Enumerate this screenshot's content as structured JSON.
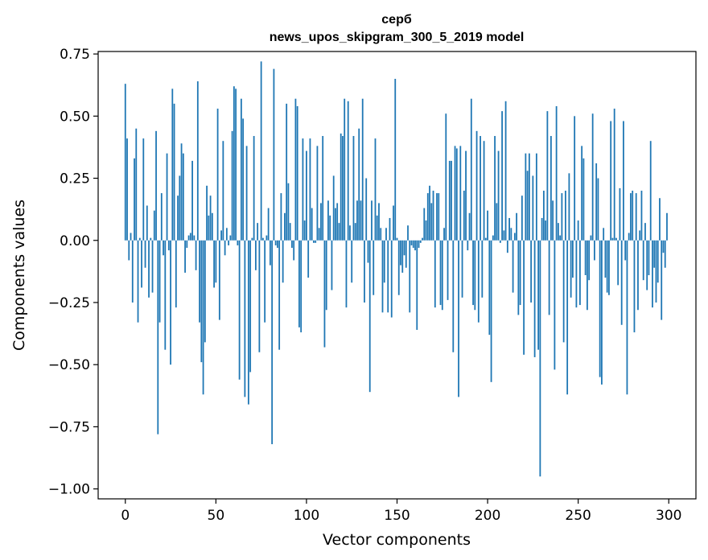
{
  "chart_data": {
    "type": "bar",
    "title_line1": "серб",
    "title_line2": "news_upos_skipgram_300_5_2019 model",
    "xlabel": "Vector components",
    "ylabel": "Components values",
    "xlim": [
      -15,
      315
    ],
    "ylim": [
      -1.04,
      0.76
    ],
    "xticks": [
      0,
      50,
      100,
      150,
      200,
      250,
      300
    ],
    "xtick_labels": [
      "0",
      "50",
      "100",
      "150",
      "200",
      "250",
      "300"
    ],
    "yticks": [
      0.75,
      0.5,
      0.25,
      0.0,
      -0.25,
      -0.5,
      -0.75,
      -1.0
    ],
    "ytick_labels": [
      "0.75",
      "0.50",
      "0.25",
      "0.00",
      "−0.25",
      "−0.50",
      "−0.75",
      "−1.00"
    ],
    "bar_color": "#1f77b4",
    "x_start": 0,
    "values": [
      0.63,
      0.41,
      -0.08,
      0.03,
      -0.25,
      0.33,
      0.45,
      -0.33,
      0.01,
      -0.19,
      0.41,
      -0.11,
      0.14,
      -0.23,
      0.01,
      -0.21,
      0.12,
      0.44,
      -0.78,
      -0.33,
      0.19,
      -0.06,
      -0.44,
      0.35,
      -0.04,
      -0.5,
      0.61,
      0.55,
      -0.27,
      0.18,
      0.26,
      0.39,
      0.35,
      -0.13,
      -0.03,
      0.02,
      0.03,
      0.32,
      0.02,
      -0.12,
      0.64,
      -0.33,
      -0.49,
      -0.62,
      -0.41,
      0.22,
      0.1,
      0.18,
      0.11,
      -0.19,
      -0.17,
      0.53,
      -0.32,
      0.04,
      0.4,
      -0.06,
      0.05,
      -0.02,
      0.02,
      0.44,
      0.62,
      0.61,
      -0.02,
      -0.56,
      0.57,
      0.49,
      -0.63,
      0.38,
      -0.66,
      -0.53,
      0.01,
      0.42,
      -0.12,
      0.07,
      -0.45,
      0.72,
      0.01,
      -0.33,
      0.02,
      0.13,
      -0.1,
      -0.82,
      0.69,
      -0.02,
      -0.03,
      -0.44,
      0.19,
      -0.17,
      0.11,
      0.55,
      0.23,
      0.07,
      -0.03,
      -0.08,
      0.57,
      0.54,
      -0.35,
      -0.37,
      0.41,
      0.08,
      0.36,
      -0.15,
      0.41,
      0.13,
      -0.01,
      -0.01,
      0.38,
      0.05,
      0.15,
      0.42,
      -0.43,
      -0.28,
      0.16,
      0.1,
      -0.2,
      0.26,
      0.13,
      0.15,
      0.07,
      0.43,
      0.42,
      0.57,
      -0.27,
      0.56,
      0.06,
      -0.17,
      0.42,
      0.07,
      0.16,
      0.45,
      0.16,
      0.57,
      -0.25,
      0.25,
      -0.09,
      -0.61,
      0.16,
      -0.22,
      0.41,
      0.1,
      0.15,
      0.05,
      -0.29,
      -0.17,
      0.05,
      -0.29,
      0.09,
      -0.31,
      0.14,
      0.65,
      0.01,
      -0.22,
      -0.1,
      -0.13,
      -0.06,
      -0.11,
      0.06,
      -0.29,
      -0.02,
      -0.03,
      -0.04,
      -0.36,
      -0.03,
      -0.01,
      0.01,
      0.13,
      0.08,
      0.19,
      0.22,
      0.15,
      0.2,
      -0.27,
      0.19,
      0.19,
      -0.26,
      -0.28,
      0.05,
      0.51,
      -0.24,
      0.32,
      0.32,
      -0.45,
      0.38,
      0.37,
      -0.63,
      0.38,
      -0.23,
      0.2,
      0.36,
      -0.04,
      0.11,
      0.57,
      -0.26,
      -0.28,
      0.44,
      -0.33,
      0.42,
      -0.23,
      0.4,
      0.01,
      0.12,
      -0.38,
      -0.57,
      0.02,
      0.42,
      0.15,
      0.36,
      -0.01,
      0.52,
      0.04,
      0.56,
      -0.05,
      0.09,
      0.05,
      -0.21,
      0.03,
      0.11,
      -0.3,
      -0.26,
      0.18,
      -0.46,
      0.35,
      0.28,
      0.35,
      -0.25,
      0.26,
      -0.47,
      0.35,
      -0.44,
      -0.95,
      0.09,
      0.2,
      0.08,
      0.52,
      -0.3,
      0.42,
      0.16,
      -0.52,
      0.54,
      0.07,
      0.02,
      0.19,
      -0.41,
      0.2,
      -0.62,
      0.27,
      -0.23,
      -0.15,
      0.5,
      -0.27,
      0.08,
      -0.26,
      0.38,
      0.33,
      -0.14,
      -0.28,
      -0.16,
      0.02,
      0.51,
      -0.08,
      0.31,
      0.25,
      -0.55,
      -0.58,
      0.05,
      -0.15,
      -0.21,
      -0.22,
      0.48,
      0.01,
      0.53,
      0.01,
      -0.18,
      0.21,
      -0.34,
      0.48,
      -0.08,
      -0.62,
      0.03,
      0.19,
      0.2,
      -0.37,
      0.19,
      -0.28,
      0.04,
      0.2,
      -0.16,
      0.07,
      -0.2,
      -0.14,
      0.4,
      -0.27,
      -0.11,
      -0.25,
      -0.17,
      0.17,
      -0.32,
      -0.05,
      -0.11,
      0.11
    ]
  }
}
